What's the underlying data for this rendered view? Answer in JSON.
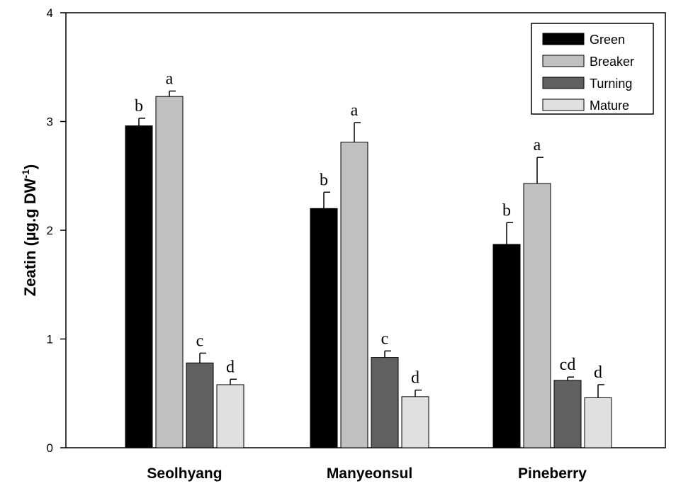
{
  "chart_data": {
    "type": "bar",
    "title": "",
    "xlabel": "",
    "ylabel": "Zeatin  (µg.g DW",
    "ylabel_superscript": "-1",
    "ylabel_close": ")",
    "ylim": [
      0,
      4
    ],
    "yticks": [
      "0",
      "1",
      "2",
      "3",
      "4"
    ],
    "grid": false,
    "legend_position": "top-right",
    "categories": [
      "Seolhyang",
      "Manyeonsul",
      "Pineberry"
    ],
    "series": [
      {
        "name": "Green",
        "color": "#000000",
        "values": [
          2.96,
          2.2,
          1.87
        ],
        "errors": [
          0.07,
          0.15,
          0.2
        ],
        "letters": [
          "b",
          "b",
          "b"
        ]
      },
      {
        "name": "Breaker",
        "color": "#c0c0c0",
        "values": [
          3.23,
          2.81,
          2.43
        ],
        "errors": [
          0.05,
          0.18,
          0.24
        ],
        "letters": [
          "a",
          "a",
          "a"
        ]
      },
      {
        "name": "Turning",
        "color": "#606060",
        "values": [
          0.78,
          0.83,
          0.62
        ],
        "errors": [
          0.09,
          0.06,
          0.03
        ],
        "letters": [
          "c",
          "c",
          "cd"
        ]
      },
      {
        "name": "Mature",
        "color": "#e0e0e0",
        "values": [
          0.58,
          0.47,
          0.46
        ],
        "errors": [
          0.05,
          0.06,
          0.12
        ],
        "letters": [
          "d",
          "d",
          "d"
        ]
      }
    ]
  }
}
